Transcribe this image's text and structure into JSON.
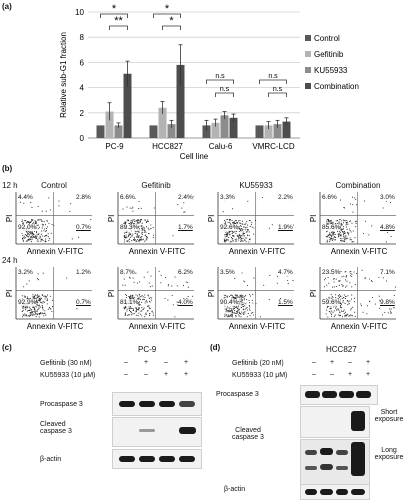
{
  "panel_a": {
    "letter": "(a)",
    "chart_data": {
      "type": "bar",
      "categories": [
        "PC-9",
        "HCC827",
        "Calu-6",
        "VMRC-LCD"
      ],
      "series": [
        {
          "name": "Control",
          "values": [
            1.0,
            1.0,
            1.0,
            1.0
          ],
          "errors": [
            0.0,
            0.0,
            0.4,
            0.0
          ],
          "color": "#595959"
        },
        {
          "name": "Gefitinib",
          "values": [
            2.1,
            2.4,
            1.2,
            1.0
          ],
          "errors": [
            0.7,
            0.5,
            0.3,
            0.3
          ],
          "color": "#b3b3b3"
        },
        {
          "name": "KU55933",
          "values": [
            1.0,
            1.1,
            1.8,
            1.1
          ],
          "errors": [
            0.2,
            0.3,
            0.3,
            0.3
          ],
          "color": "#8c8c8c"
        },
        {
          "name": "Combination",
          "values": [
            5.1,
            5.8,
            1.6,
            1.3
          ],
          "errors": [
            1.0,
            1.6,
            0.3,
            0.3
          ],
          "color": "#4d4d4d"
        }
      ],
      "xlabel": "Cell line",
      "ylabel": "Relative sub-G1 fraction",
      "ylim": [
        0,
        10
      ],
      "yticks": [
        0,
        2,
        4,
        6,
        8,
        10
      ],
      "yticks_labels": [
        "0",
        "2",
        "4",
        "6",
        "8",
        "10"
      ],
      "legend": "right",
      "significance": [
        "*",
        "**",
        "*",
        "*",
        "n.s",
        "n.s",
        "n.s",
        "n.s"
      ]
    }
  },
  "panel_b": {
    "letter": "(b)",
    "columns": [
      "Control",
      "Gefitinib",
      "KU55933",
      "Combination"
    ],
    "rows": [
      {
        "time": "12 h",
        "plots": [
          {
            "ul": "4.4%",
            "ur": "2.8%",
            "ll": "92.0%",
            "lr": "0.7%"
          },
          {
            "ul": "6.6%",
            "ur": "2.4%",
            "ll": "89.3%",
            "lr": "1.7%"
          },
          {
            "ul": "3.3%",
            "ur": "2.2%",
            "ll": "92.6%",
            "lr": "1.9%"
          },
          {
            "ul": "6.6%",
            "ur": "3.0%",
            "ll": "85.6%",
            "lr": "4.8%"
          }
        ]
      },
      {
        "time": "24 h",
        "plots": [
          {
            "ul": "3.2%",
            "ur": "1.2%",
            "ll": "92.9%",
            "lr": "0.7%"
          },
          {
            "ul": "8.7%",
            "ur": "6.2%",
            "ll": "81.1%",
            "lr": "4.0%"
          },
          {
            "ul": "3.5%",
            "ur": "4.7%",
            "ll": "90.4%",
            "lr": "1.5%"
          },
          {
            "ul": "23.5%",
            "ur": "7.1%",
            "ll": "59.6%",
            "lr": "9.8%"
          }
        ]
      }
    ],
    "xlabel": "Annexin V-FITC",
    "ylabel": "PI"
  },
  "panel_c": {
    "letter": "(c)",
    "title": "PC-9",
    "treatments": [
      {
        "label": "Gefitinib (30 nM)",
        "signs": [
          "–",
          "+",
          "–",
          "+"
        ]
      },
      {
        "label": "KU55933 (10 μM)",
        "signs": [
          "–",
          "–",
          "+",
          "+"
        ]
      }
    ],
    "blots": [
      "Procaspase 3",
      "Cleaved caspase 3",
      "β-actin"
    ]
  },
  "panel_d": {
    "letter": "(d)",
    "title": "HCC827",
    "treatments": [
      {
        "label": "Gefitinib (20 nM)",
        "signs": [
          "–",
          "+",
          "–",
          "+"
        ]
      },
      {
        "label": "KU55933 (10 μM)",
        "signs": [
          "–",
          "–",
          "+",
          "+"
        ]
      }
    ],
    "blots": [
      "Procaspase 3",
      "Cleaved caspase 3",
      "β-actin"
    ],
    "exposures": [
      "Short exposure",
      "Long exposure"
    ]
  }
}
